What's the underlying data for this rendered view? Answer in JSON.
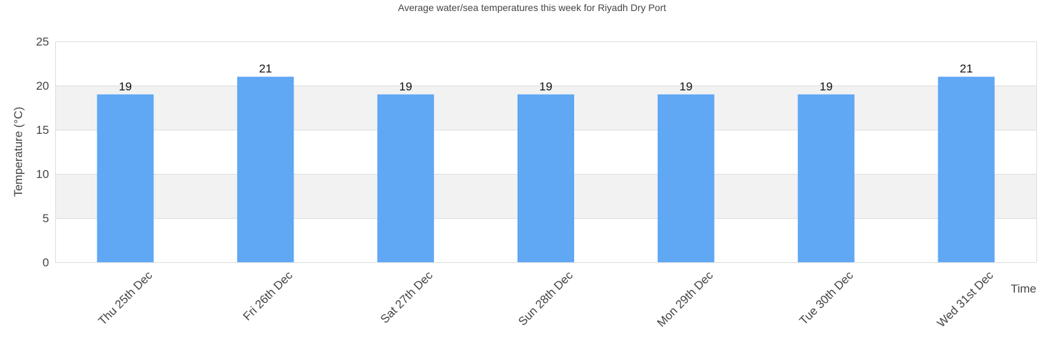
{
  "chart_data": {
    "type": "bar",
    "title": "Average water/sea temperatures this week for Riyadh Dry Port",
    "xlabel": "Time",
    "ylabel": "Temperature (°C)",
    "categories": [
      "Thu 25th Dec",
      "Fri 26th Dec",
      "Sat 27th Dec",
      "Sun 28th Dec",
      "Mon 29th Dec",
      "Tue 30th Dec",
      "Wed 31st Dec"
    ],
    "values": [
      19,
      21,
      19,
      19,
      19,
      19,
      21
    ],
    "ylim": [
      0,
      25
    ],
    "yticks": [
      0,
      5,
      10,
      15,
      20,
      25
    ],
    "grid": true,
    "legend": null,
    "bar_color": "#60a7f4",
    "band_color": "#f2f2f2",
    "grid_color": "#dddddd"
  }
}
